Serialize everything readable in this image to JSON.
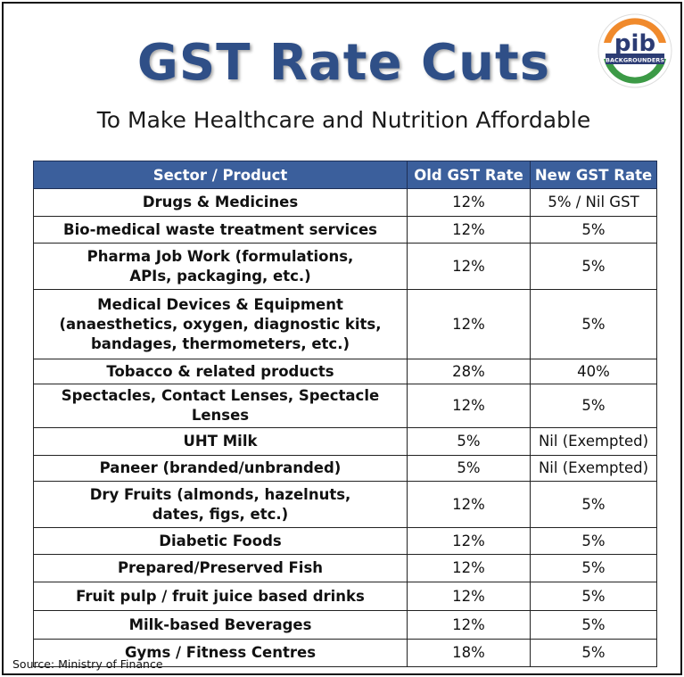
{
  "header": {
    "title": "GST Rate Cuts",
    "subtitle": "To Make Healthcare and Nutrition Affordable"
  },
  "logo": {
    "icon": "pib-logo-icon",
    "text": "pib",
    "tagline": "BACKGROUNDERS",
    "colors": {
      "saffron": "#f08a2c",
      "green": "#3c9a46",
      "navy": "#2c3c74"
    }
  },
  "colors": {
    "title": "#2f4f87",
    "header_bg": "#3b5f9c",
    "header_text": "#ffffff"
  },
  "table": {
    "headers": [
      "Sector / Product",
      "Old GST Rate",
      "New GST Rate"
    ],
    "rows": [
      {
        "product": "Drugs & Medicines",
        "old": "12%",
        "new": "5% / Nil GST"
      },
      {
        "product": "Bio-medical waste treatment services",
        "old": "12%",
        "new": "5%"
      },
      {
        "product": "Pharma Job Work (formulations,\nAPIs, packaging, etc.)",
        "old": "12%",
        "new": "5%"
      },
      {
        "product": "Medical Devices & Equipment\n(anaesthetics, oxygen, diagnostic kits,\nbandages, thermometers, etc.)",
        "old": "12%",
        "new": "5%"
      },
      {
        "product": "Tobacco & related products",
        "old": "28%",
        "new": "40%"
      },
      {
        "product": "Spectacles, Contact Lenses, Spectacle Lenses",
        "old": "12%",
        "new": "5%"
      },
      {
        "product": "UHT Milk",
        "old": "5%",
        "new": "Nil (Exempted)"
      },
      {
        "product": "Paneer (branded/unbranded)",
        "old": "5%",
        "new": "Nil (Exempted)"
      },
      {
        "product": "Dry Fruits (almonds, hazelnuts,\ndates, figs, etc.)",
        "old": "12%",
        "new": "5%"
      },
      {
        "product": "Diabetic Foods",
        "old": "12%",
        "new": "5%"
      },
      {
        "product": "Prepared/Preserved Fish",
        "old": "12%",
        "new": "5%"
      },
      {
        "product": "Fruit pulp / fruit juice based drinks",
        "old": "12%",
        "new": "5%"
      },
      {
        "product": "Milk-based Beverages",
        "old": "12%",
        "new": "5%"
      },
      {
        "product": "Gyms / Fitness Centres",
        "old": "18%",
        "new": "5%"
      }
    ]
  },
  "footer": {
    "source": "Source: Ministry of Finance"
  }
}
